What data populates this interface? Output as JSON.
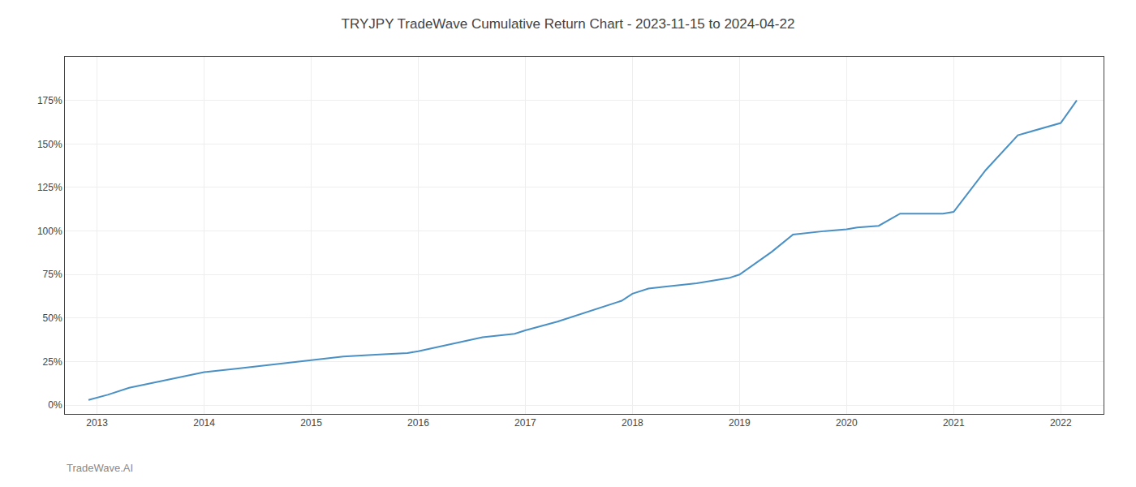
{
  "chart_data": {
    "type": "line",
    "title": "TRYJPY TradeWave Cumulative Return Chart - 2023-11-15 to 2024-04-22",
    "annotations": [
      "TradeWave.AI"
    ],
    "x": [
      2012.92,
      2013.1,
      2013.3,
      2013.6,
      2013.9,
      2014.0,
      2014.3,
      2014.6,
      2014.9,
      2015.0,
      2015.3,
      2015.6,
      2015.9,
      2016.0,
      2016.3,
      2016.6,
      2016.9,
      2017.0,
      2017.3,
      2017.6,
      2017.9,
      2018.0,
      2018.15,
      2018.3,
      2018.6,
      2018.9,
      2019.0,
      2019.3,
      2019.5,
      2019.8,
      2020.0,
      2020.1,
      2020.3,
      2020.5,
      2020.7,
      2020.9,
      2021.0,
      2021.3,
      2021.6,
      2021.9,
      2022.0,
      2022.15
    ],
    "values": [
      3,
      6,
      10,
      14,
      18,
      19,
      21,
      23,
      25,
      26,
      28,
      29,
      30,
      31,
      35,
      39,
      41,
      43,
      48,
      54,
      60,
      64,
      67,
      68,
      70,
      73,
      75,
      88,
      98,
      100,
      101,
      102,
      103,
      110,
      110,
      110,
      111,
      135,
      155,
      160,
      162,
      175
    ],
    "color": "#4a90c4",
    "xlim": [
      2012.7,
      2022.4
    ],
    "xticks": [
      2013,
      2014,
      2015,
      2016,
      2017,
      2018,
      2019,
      2020,
      2021,
      2022
    ],
    "ylim": [
      -5,
      200
    ],
    "yticks": [
      {
        "value": 0,
        "label": "0%"
      },
      {
        "value": 25,
        "label": "25%"
      },
      {
        "value": 50,
        "label": "50%"
      },
      {
        "value": 75,
        "label": "75%"
      },
      {
        "value": 100,
        "label": "100%"
      },
      {
        "value": 125,
        "label": "125%"
      },
      {
        "value": 150,
        "label": "150%"
      },
      {
        "value": 175,
        "label": "175%"
      }
    ],
    "grid": true
  }
}
